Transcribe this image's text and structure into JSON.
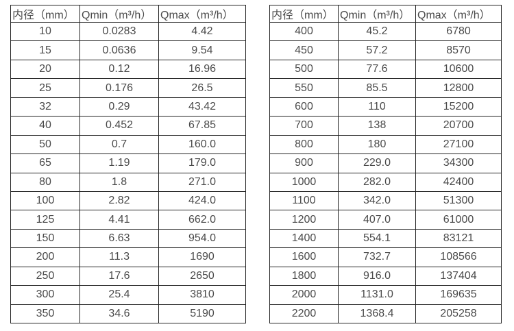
{
  "colors": {
    "background": "#ffffff",
    "text": "#4a4a4a",
    "grid_border": "#222222"
  },
  "tables": [
    {
      "name": "small-diameter-flow-table",
      "headers": [
        "内径（mm）",
        "Qmin（m³/h）",
        "Qmax（m³/h）"
      ],
      "rows": [
        [
          "10",
          "0.0283",
          "4.42"
        ],
        [
          "15",
          "0.0636",
          "9.54"
        ],
        [
          "20",
          "0.12",
          "16.96"
        ],
        [
          "25",
          "0.176",
          "26.5"
        ],
        [
          "32",
          "0.29",
          "43.42"
        ],
        [
          "40",
          "0.452",
          "67.85"
        ],
        [
          "50",
          "0.7",
          "160.0"
        ],
        [
          "65",
          "1.19",
          "179.0"
        ],
        [
          "80",
          "1.8",
          "271.0"
        ],
        [
          "100",
          "2.82",
          "424.0"
        ],
        [
          "125",
          "4.41",
          "662.0"
        ],
        [
          "150",
          "6.63",
          "954.0"
        ],
        [
          "200",
          "11.3",
          "1690"
        ],
        [
          "250",
          "17.6",
          "2650"
        ],
        [
          "300",
          "25.4",
          "3810"
        ],
        [
          "350",
          "34.6",
          "5190"
        ]
      ]
    },
    {
      "name": "large-diameter-flow-table",
      "headers": [
        "内径（mm）",
        "Qmin（m³/h）",
        "Qmax（m³/h）"
      ],
      "rows": [
        [
          "400",
          "45.2",
          "6780"
        ],
        [
          "450",
          "57.2",
          "8570"
        ],
        [
          "500",
          "77.6",
          "10600"
        ],
        [
          "550",
          "85.5",
          "12800"
        ],
        [
          "600",
          "110",
          "15200"
        ],
        [
          "700",
          "138",
          "20700"
        ],
        [
          "800",
          "180",
          "27100"
        ],
        [
          "900",
          "229.0",
          "34300"
        ],
        [
          "1000",
          "282.0",
          "42400"
        ],
        [
          "1100",
          "342.0",
          "51300"
        ],
        [
          "1200",
          "407.0",
          "61000"
        ],
        [
          "1400",
          "554.1",
          "83121"
        ],
        [
          "1600",
          "732.7",
          "108566"
        ],
        [
          "1800",
          "916.0",
          "137404"
        ],
        [
          "2000",
          "1131.0",
          "169635"
        ],
        [
          "2200",
          "1368.4",
          "205258"
        ]
      ]
    }
  ]
}
